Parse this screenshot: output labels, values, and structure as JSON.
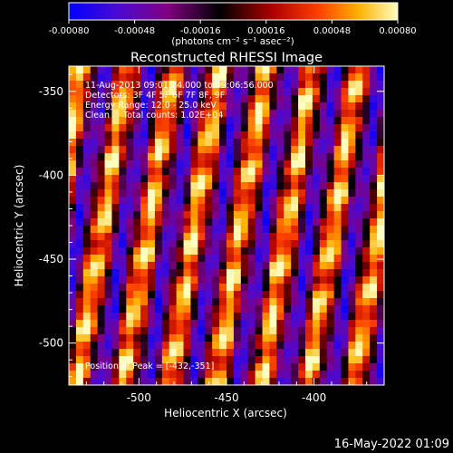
{
  "colorbar": {
    "ticks": [
      "-0.00080",
      "-0.00048",
      "-0.00016",
      "0.00016",
      "0.00048",
      "0.00080"
    ],
    "range": [
      -0.0008,
      0.0008
    ],
    "unit_label": "(photons cm⁻² s⁻¹ asec⁻²)"
  },
  "chart_data": {
    "type": "heatmap",
    "title": "Reconstructed RHESSI Image",
    "xlabel": "Heliocentric X (arcsec)",
    "ylabel": "Heliocentric Y (arcsec)",
    "xlim": [
      -540,
      -360
    ],
    "ylim": [
      -525,
      -335
    ],
    "x_ticks": [
      "-500",
      "-450",
      "-400"
    ],
    "y_ticks": [
      "-350",
      "-400",
      "-450",
      "-500"
    ],
    "x_tick_values": [
      -500,
      -450,
      -400
    ],
    "y_tick_values": [
      -350,
      -400,
      -450,
      -500
    ],
    "colormap": [
      "#0000ff",
      "#4b0ad2",
      "#800080",
      "#000000",
      "#b00000",
      "#ff4000",
      "#ffb000",
      "#ffffc0"
    ],
    "annotations": {
      "line1": "11-Aug-2013 09:01:24.000 to 09:06:56.000",
      "line2": "Detectors: 3F 4F 5F 6F 7F 8F, 9F",
      "line3": "Energy Range: 12.0 - 25.0 keV",
      "line4": "Clean     Total counts: 1.02E+04",
      "peak": "Position of Peak = [-432,-351]"
    },
    "peak_position": [
      -432,
      -351
    ]
  },
  "timestamp": "16-May-2022 01:09"
}
